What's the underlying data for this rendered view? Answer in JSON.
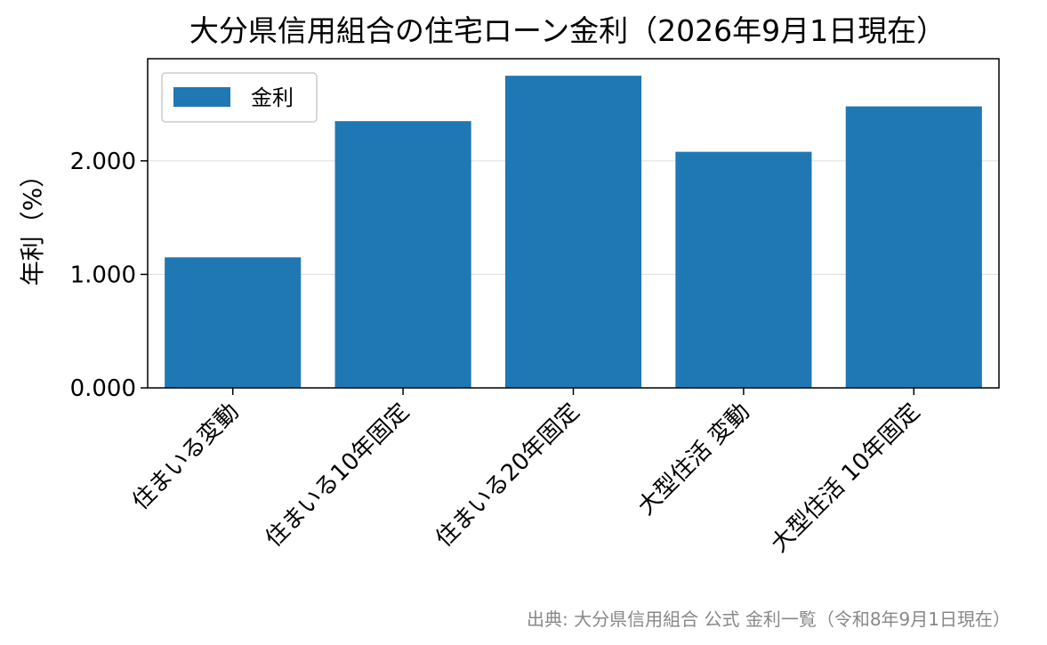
{
  "chart_data": {
    "type": "bar",
    "title": "大分県信用組合の住宅ローン金利（2026年9月1日現在）",
    "ylabel": "年利（%）",
    "xlabel": "",
    "categories": [
      "住まいる変動",
      "住まいる10年固定",
      "住まいる20年固定",
      "大型住活 変動",
      "大型住活 10年固定"
    ],
    "series": [
      {
        "name": "金利",
        "values": [
          1.15,
          2.35,
          2.75,
          2.08,
          2.48
        ]
      }
    ],
    "ylim": [
      0,
      2.9
    ],
    "yticks": [
      0,
      1,
      2
    ],
    "ytick_labels": [
      "0.000",
      "1.000",
      "2.000"
    ],
    "grid": "y",
    "legend_position": "top-left",
    "bar_color": "#1f77b4",
    "source": "出典: 大分県信用組合 公式 金利一覧（令和8年9月1日現在）"
  }
}
